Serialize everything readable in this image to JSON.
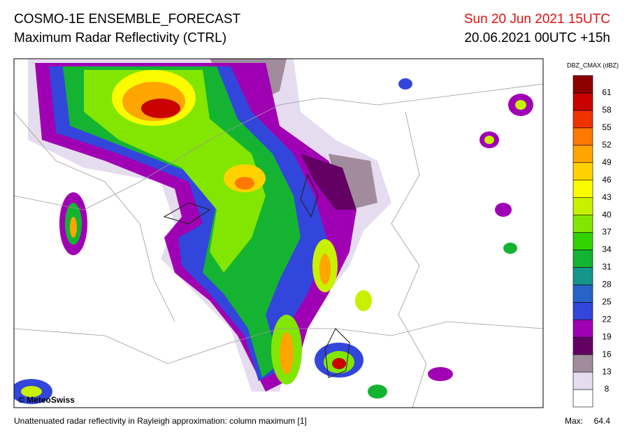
{
  "header": {
    "title": "COSMO-1E ENSEMBLE_FORECAST",
    "subtitle": "Maximum Radar Reflectivity (CTRL)",
    "valid_time": "Sun 20 Jun 2021 15UTC",
    "run": "20.06.2021 00UTC +15h"
  },
  "map": {
    "copyright": "© MeteoSwiss"
  },
  "colorbar": {
    "title": "DBZ_CMAX (dBZ)",
    "labels": [
      8,
      13,
      16,
      19,
      22,
      25,
      28,
      31,
      34,
      37,
      40,
      43,
      46,
      49,
      52,
      55,
      58,
      61
    ],
    "colors": [
      "#ffffff",
      "#e6dcf0",
      "#a08c9c",
      "#640064",
      "#a000b4",
      "#3246dc",
      "#2864c8",
      "#14968c",
      "#14b432",
      "#32d200",
      "#82e600",
      "#c8f000",
      "#fafa00",
      "#ffd200",
      "#ffa500",
      "#ff7800",
      "#f03200",
      "#c80000",
      "#8c0000"
    ]
  },
  "footer": {
    "note": "Unattenuated radar reflectivity in Rayleigh approximation: column maximum [1]",
    "max_label": "Max:",
    "max_value": "64.4"
  }
}
